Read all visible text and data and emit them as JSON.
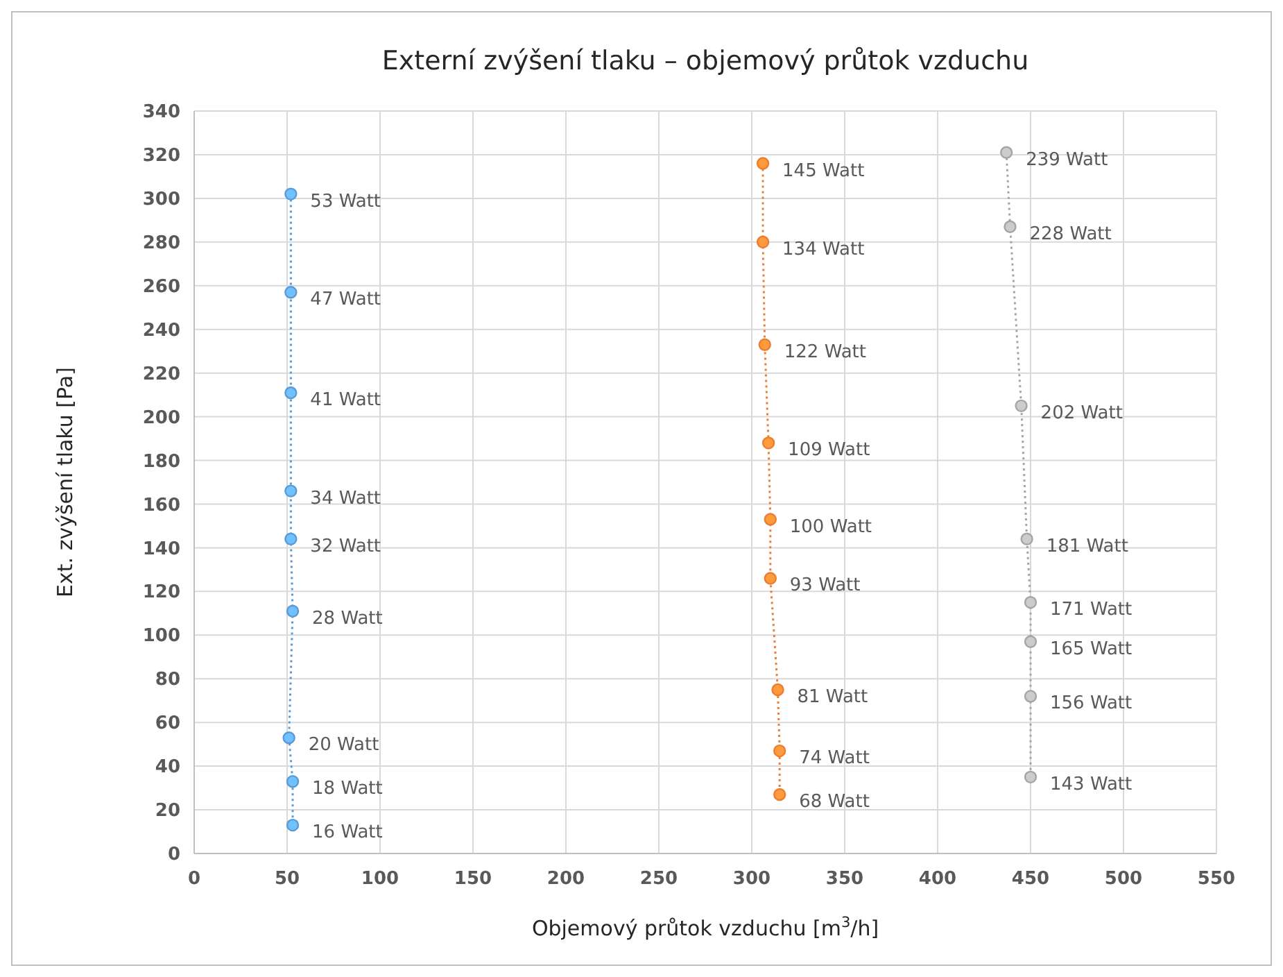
{
  "chart_data": {
    "type": "line",
    "title": "Externí zvýšení tlaku – objemový průtok vzduchu",
    "xlabel": "Objemový průtok vzduchu [m$^{3}$/h]",
    "ylabel": "Ext. zvýšení tlaku [Pa]",
    "xlim": [
      0,
      550
    ],
    "xticks": [
      0,
      50,
      100,
      150,
      200,
      250,
      300,
      350,
      400,
      450,
      500,
      550
    ],
    "ylim": [
      0,
      340
    ],
    "yticks": [
      0,
      20,
      40,
      60,
      80,
      100,
      120,
      140,
      160,
      180,
      200,
      220,
      240,
      260,
      280,
      300,
      320,
      340
    ],
    "grid": true,
    "marker": "circle",
    "line_style": "dotted",
    "series": [
      {
        "color": "#5b9bd5",
        "x": [
          52,
          52,
          52,
          52,
          52,
          53,
          51,
          53,
          53
        ],
        "values": [
          302,
          257,
          211,
          166,
          144,
          111,
          53,
          33,
          13
        ]
      },
      {
        "color": "#ed7d31",
        "x": [
          306,
          306,
          307,
          309,
          310,
          310,
          314,
          315,
          315
        ],
        "values": [
          316,
          280,
          233,
          188,
          153,
          126,
          75,
          47,
          27
        ]
      },
      {
        "color": "#a5a5a5",
        "x": [
          437,
          439,
          445,
          448,
          450,
          450,
          450,
          450
        ],
        "values": [
          321,
          287,
          205,
          144,
          115,
          97,
          72,
          35
        ]
      }
    ],
    "annotations": [
      {
        "text": "53 Watt",
        "x": 52,
        "y": 302
      },
      {
        "text": "47 Watt",
        "x": 52,
        "y": 257
      },
      {
        "text": "41 Watt",
        "x": 52,
        "y": 211
      },
      {
        "text": "34 Watt",
        "x": 52,
        "y": 166
      },
      {
        "text": "32 Watt",
        "x": 52,
        "y": 144
      },
      {
        "text": "28 Watt",
        "x": 53,
        "y": 111
      },
      {
        "text": "20 Watt",
        "x": 51,
        "y": 53
      },
      {
        "text": "18 Watt",
        "x": 53,
        "y": 33
      },
      {
        "text": "16 Watt",
        "x": 53,
        "y": 13
      },
      {
        "text": "145 Watt",
        "x": 306,
        "y": 316
      },
      {
        "text": "134 Watt",
        "x": 306,
        "y": 280
      },
      {
        "text": "122 Watt",
        "x": 307,
        "y": 233
      },
      {
        "text": "109 Watt",
        "x": 309,
        "y": 188
      },
      {
        "text": "100 Watt",
        "x": 310,
        "y": 153
      },
      {
        "text": "93 Watt",
        "x": 310,
        "y": 126
      },
      {
        "text": "81 Watt",
        "x": 314,
        "y": 75
      },
      {
        "text": "74 Watt",
        "x": 315,
        "y": 47
      },
      {
        "text": "68 Watt",
        "x": 315,
        "y": 27
      },
      {
        "text": "239 Watt",
        "x": 437,
        "y": 321
      },
      {
        "text": "228 Watt",
        "x": 439,
        "y": 287
      },
      {
        "text": "202 Watt",
        "x": 445,
        "y": 205
      },
      {
        "text": "181 Watt",
        "x": 448,
        "y": 144
      },
      {
        "text": "171 Watt",
        "x": 450,
        "y": 115
      },
      {
        "text": "165 Watt",
        "x": 450,
        "y": 97
      },
      {
        "text": "156 Watt",
        "x": 450,
        "y": 72
      },
      {
        "text": "143 Watt",
        "x": 450,
        "y": 35
      }
    ]
  }
}
